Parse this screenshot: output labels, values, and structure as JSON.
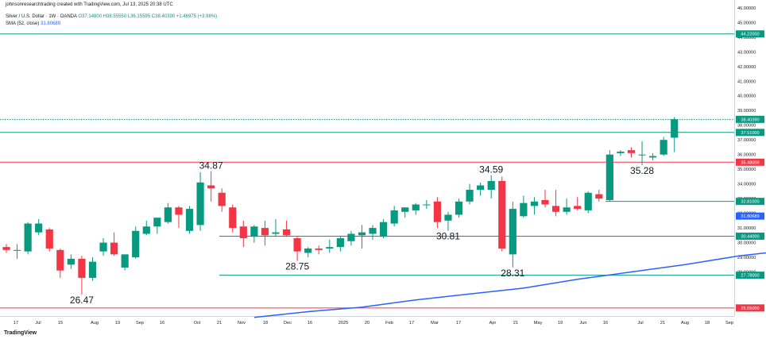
{
  "header": {
    "line1": "johnsonresearchtrading created with TradingView.com, Jul 13, 2025 20:38 UTC",
    "symbol": "Silver / U.S. Dollar · 1W · OANDA",
    "ohlc": "O37.14800 H38.55550 L36.15595 C38.40390 +1.46975 (+3.98%)",
    "sma_label": "SMA (52, close)",
    "sma_value": "31.80689"
  },
  "footer": {
    "logo": "TradingView"
  },
  "watermark": "",
  "chart_data": {
    "type": "candlestick",
    "price_range": [
      25.0,
      46.0
    ],
    "y_ticks": [
      "28.00000",
      "29.00000",
      "30.00000",
      "31.00000",
      "32.00000",
      "33.00000",
      "34.00000",
      "35.00000",
      "36.00000",
      "37.00000",
      "38.00000",
      "39.00000",
      "40.00000",
      "41.00000",
      "42.00000",
      "43.00000",
      "44.00000",
      "45.00000",
      "46.00000"
    ],
    "x_ticks": [
      "17",
      "Jul",
      "15",
      "Aug",
      "19",
      "Sep",
      "16",
      "Oct",
      "21",
      "Nov",
      "18",
      "Dec",
      "16",
      "2025",
      "20",
      "Feb",
      "17",
      "Mar",
      "17",
      "Apr",
      "21",
      "May",
      "19",
      "Jun",
      "16",
      "Jul",
      "21",
      "Aug",
      "18",
      "Sep"
    ],
    "candles": [
      {
        "o": 29.7,
        "h": 29.9,
        "l": 29.3,
        "c": 29.5
      },
      {
        "o": 29.5,
        "h": 29.9,
        "l": 28.9,
        "c": 29.5
      },
      {
        "o": 29.4,
        "h": 31.4,
        "l": 29.2,
        "c": 31.3
      },
      {
        "o": 30.7,
        "h": 31.6,
        "l": 30.5,
        "c": 31.3
      },
      {
        "o": 30.9,
        "h": 31.0,
        "l": 29.4,
        "c": 29.6
      },
      {
        "o": 29.5,
        "h": 29.6,
        "l": 27.6,
        "c": 28.1
      },
      {
        "o": 28.5,
        "h": 29.2,
        "l": 28.2,
        "c": 28.9
      },
      {
        "o": 28.9,
        "h": 29.1,
        "l": 26.47,
        "c": 27.6
      },
      {
        "o": 27.6,
        "h": 29.0,
        "l": 27.4,
        "c": 28.7
      },
      {
        "o": 29.4,
        "h": 30.3,
        "l": 29.1,
        "c": 30.0
      },
      {
        "o": 30.0,
        "h": 30.7,
        "l": 29.1,
        "c": 29.2
      },
      {
        "o": 28.3,
        "h": 29.2,
        "l": 28.1,
        "c": 29.2
      },
      {
        "o": 29.0,
        "h": 31.1,
        "l": 28.9,
        "c": 30.8
      },
      {
        "o": 30.6,
        "h": 31.5,
        "l": 30.5,
        "c": 31.1
      },
      {
        "o": 31.1,
        "h": 31.6,
        "l": 30.6,
        "c": 31.7
      },
      {
        "o": 31.4,
        "h": 32.7,
        "l": 31.3,
        "c": 32.4
      },
      {
        "o": 32.4,
        "h": 32.5,
        "l": 31.0,
        "c": 31.9
      },
      {
        "o": 30.8,
        "h": 32.5,
        "l": 30.6,
        "c": 32.3
      },
      {
        "o": 31.2,
        "h": 34.8,
        "l": 30.8,
        "c": 34.1
      },
      {
        "o": 33.9,
        "h": 34.87,
        "l": 32.8,
        "c": 33.7
      },
      {
        "o": 33.4,
        "h": 33.7,
        "l": 32.1,
        "c": 32.5
      },
      {
        "o": 32.4,
        "h": 32.6,
        "l": 30.7,
        "c": 31.0
      },
      {
        "o": 31.1,
        "h": 31.5,
        "l": 29.7,
        "c": 30.3
      },
      {
        "o": 30.4,
        "h": 31.2,
        "l": 30.0,
        "c": 31.1
      },
      {
        "o": 31.0,
        "h": 31.5,
        "l": 29.8,
        "c": 30.5
      },
      {
        "o": 30.6,
        "h": 31.6,
        "l": 30.4,
        "c": 30.7
      },
      {
        "o": 30.9,
        "h": 31.5,
        "l": 30.4,
        "c": 30.5
      },
      {
        "o": 30.3,
        "h": 30.4,
        "l": 28.75,
        "c": 29.4
      },
      {
        "o": 29.3,
        "h": 29.7,
        "l": 29.0,
        "c": 29.6
      },
      {
        "o": 29.6,
        "h": 29.8,
        "l": 29.2,
        "c": 29.5
      },
      {
        "o": 29.6,
        "h": 30.2,
        "l": 29.3,
        "c": 29.7
      },
      {
        "o": 29.7,
        "h": 30.4,
        "l": 29.4,
        "c": 30.3
      },
      {
        "o": 30.1,
        "h": 30.8,
        "l": 29.8,
        "c": 30.6
      },
      {
        "o": 30.5,
        "h": 31.2,
        "l": 29.6,
        "c": 30.7
      },
      {
        "o": 30.6,
        "h": 31.2,
        "l": 30.2,
        "c": 31.0
      },
      {
        "o": 30.4,
        "h": 31.6,
        "l": 30.3,
        "c": 31.4
      },
      {
        "o": 31.3,
        "h": 32.5,
        "l": 31.1,
        "c": 32.2
      },
      {
        "o": 32.1,
        "h": 32.4,
        "l": 31.7,
        "c": 32.4
      },
      {
        "o": 32.2,
        "h": 32.7,
        "l": 31.9,
        "c": 32.6
      },
      {
        "o": 32.6,
        "h": 32.9,
        "l": 32.3,
        "c": 32.6
      },
      {
        "o": 32.8,
        "h": 33.1,
        "l": 31.0,
        "c": 31.4
      },
      {
        "o": 31.5,
        "h": 32.1,
        "l": 30.81,
        "c": 31.9
      },
      {
        "o": 31.9,
        "h": 33.0,
        "l": 31.7,
        "c": 32.8
      },
      {
        "o": 32.8,
        "h": 34.0,
        "l": 32.6,
        "c": 33.6
      },
      {
        "o": 33.6,
        "h": 34.1,
        "l": 33.2,
        "c": 33.9
      },
      {
        "o": 33.6,
        "h": 34.59,
        "l": 33.0,
        "c": 34.2
      },
      {
        "o": 34.2,
        "h": 34.5,
        "l": 29.4,
        "c": 29.6
      },
      {
        "o": 29.2,
        "h": 32.8,
        "l": 28.31,
        "c": 32.3
      },
      {
        "o": 31.8,
        "h": 33.2,
        "l": 31.7,
        "c": 32.7
      },
      {
        "o": 32.5,
        "h": 33.1,
        "l": 31.9,
        "c": 32.8
      },
      {
        "o": 32.9,
        "h": 33.6,
        "l": 32.4,
        "c": 32.6
      },
      {
        "o": 32.5,
        "h": 33.6,
        "l": 31.8,
        "c": 32.1
      },
      {
        "o": 32.1,
        "h": 33.0,
        "l": 31.9,
        "c": 32.4
      },
      {
        "o": 32.5,
        "h": 33.1,
        "l": 32.2,
        "c": 32.3
      },
      {
        "o": 32.2,
        "h": 33.5,
        "l": 32.0,
        "c": 33.4
      },
      {
        "o": 33.3,
        "h": 33.6,
        "l": 32.8,
        "c": 33.0
      },
      {
        "o": 32.9,
        "h": 36.3,
        "l": 32.8,
        "c": 36.0
      },
      {
        "o": 36.1,
        "h": 36.3,
        "l": 35.9,
        "c": 36.2
      },
      {
        "o": 36.3,
        "h": 36.5,
        "l": 35.8,
        "c": 36.1
      },
      {
        "o": 36.0,
        "h": 36.9,
        "l": 35.28,
        "c": 36.0
      },
      {
        "o": 35.8,
        "h": 36.1,
        "l": 35.6,
        "c": 35.9
      },
      {
        "o": 36.0,
        "h": 37.2,
        "l": 35.9,
        "c": 37.0
      },
      {
        "o": 37.15,
        "h": 38.56,
        "l": 36.16,
        "c": 38.4
      }
    ],
    "sma52": {
      "name": "SMA (52, close)",
      "points": [
        [
          23,
          24.9
        ],
        [
          28,
          25.3
        ],
        [
          33,
          25.6
        ],
        [
          38,
          26.1
        ],
        [
          43,
          26.5
        ],
        [
          48,
          26.9
        ],
        [
          53,
          27.5
        ],
        [
          58,
          28.0
        ],
        [
          63,
          28.5
        ],
        [
          68,
          29.1
        ],
        [
          73,
          29.5
        ],
        [
          78,
          29.8
        ],
        [
          83,
          30.1
        ],
        [
          88,
          30.3
        ],
        [
          93,
          30.5
        ],
        [
          98,
          30.7
        ],
        [
          103,
          30.9
        ],
        [
          108,
          31.1
        ],
        [
          113,
          31.2
        ],
        [
          118,
          31.4
        ],
        [
          123,
          31.5
        ],
        [
          128,
          31.6
        ],
        [
          133,
          31.8
        ]
      ]
    },
    "levels": [
      {
        "value": 44.22,
        "label": "44.22000",
        "color": "#089981",
        "span": "full"
      },
      {
        "value": 38.4,
        "label": "38.40390",
        "color": "#089981",
        "span": "dotted"
      },
      {
        "value": 37.51,
        "label": "37.51000",
        "color": "#089981",
        "span": "full"
      },
      {
        "value": 35.48,
        "label": "35.48000",
        "color": "#f23645",
        "span": "full"
      },
      {
        "value": 32.81,
        "label": "32.81000",
        "color": "#089981",
        "span": "right"
      },
      {
        "value": 31.81,
        "label": "31.80689",
        "color": "#2962ff",
        "span": "none"
      },
      {
        "value": 30.44,
        "label": "30.44000",
        "color": "#089981",
        "span": "mid"
      },
      {
        "value": 27.78,
        "label": "27.78000",
        "color": "#089981",
        "span": "mid"
      },
      {
        "value": 25.55,
        "label": "25.55000",
        "color": "#f23645",
        "span": "full"
      }
    ],
    "annotations": [
      {
        "text": "34.87",
        "idx": 19,
        "price": 34.87,
        "pos": "above"
      },
      {
        "text": "34.59",
        "idx": 45,
        "price": 34.59,
        "pos": "above"
      },
      {
        "text": "35.28",
        "idx": 59,
        "price": 35.28,
        "pos": "below"
      },
      {
        "text": "30.81",
        "idx": 41,
        "price": 30.81,
        "pos": "below"
      },
      {
        "text": "28.75",
        "idx": 27,
        "price": 28.75,
        "pos": "below"
      },
      {
        "text": "28.31",
        "idx": 47,
        "price": 28.31,
        "pos": "below"
      },
      {
        "text": "26.47",
        "idx": 7,
        "price": 26.47,
        "pos": "below"
      }
    ],
    "colors": {
      "up": "#089981",
      "down": "#f23645",
      "sma": "#2962ff"
    }
  }
}
